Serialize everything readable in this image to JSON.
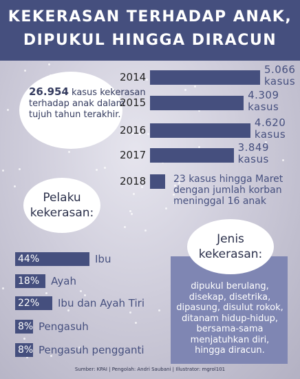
{
  "title_line1": "KEKERASAN TERHADAP ANAK,",
  "title_line2": "DIPUKUL HINGGA DIRACUN",
  "total": {
    "number": "26.954",
    "text": " kasus kekerasan terhadap anak dalam tujuh tahun terakhir."
  },
  "chart_data": [
    {
      "type": "bar",
      "orientation": "horizontal",
      "categories": [
        "2014",
        "2015",
        "2016",
        "2017",
        "2018"
      ],
      "values": [
        5066,
        4309,
        4620,
        3849,
        23
      ],
      "value_labels": [
        "5.066 kasus",
        "4.309 kasus",
        "4.620 kasus",
        "3.849 kasus",
        "23 kasus hingga Maret dengan jumlah korban meninggal 16 anak"
      ],
      "value_label_lines": [
        [
          "5.066",
          "kasus"
        ],
        [
          "4.309",
          "kasus"
        ],
        [
          "4.620",
          "kasus"
        ],
        [
          "3.849",
          "kasus"
        ]
      ],
      "color": "#454f7e"
    },
    {
      "type": "bar",
      "orientation": "horizontal",
      "title_lines": [
        "Pelaku",
        "kekerasan:"
      ],
      "categories": [
        "Ibu",
        "Ayah",
        "Ibu dan Ayah Tiri",
        "Pengasuh",
        "Pengasuh pengganti"
      ],
      "values": [
        44,
        18,
        22,
        8,
        8
      ],
      "value_labels": [
        "44%",
        "18%",
        "22%",
        "8%",
        "8%"
      ],
      "color": "#454f7e"
    }
  ],
  "jenis": {
    "title_lines": [
      "Jenis",
      "kekerasan:"
    ],
    "lines": [
      "dipukul berulang,",
      "disekap, disetrika,",
      "dipasung, disulut rokok,",
      "ditanam hidup-hidup,",
      "bersama-sama",
      "menjatuhkan diri,",
      "hingga diracun."
    ]
  },
  "source": "Sumber: KPAI | Pengolah: Andri Saubani | Illustrator: mgrol101",
  "colors": {
    "header": "#454f7e",
    "bar": "#454f7e",
    "box": "#7f86b3"
  }
}
